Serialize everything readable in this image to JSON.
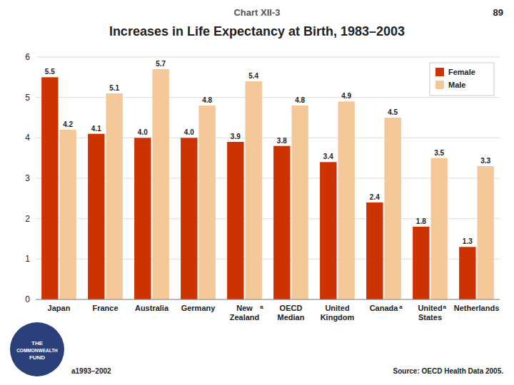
{
  "chart_data": {
    "type": "bar",
    "title": "Increases in Life Expectancy at Birth, 1983–2003",
    "subtitle": "Chart XII-3",
    "categories": [
      "Japan",
      "France",
      "Australia",
      "Germany",
      "New\nZealand",
      "OECD\nMedian",
      "United\nKingdom",
      "Canada",
      "United\nStates",
      "Netherlands"
    ],
    "series": [
      {
        "name": "Female",
        "color": "#CC3300",
        "values": [
          5.5,
          4.1,
          4.0,
          4.0,
          3.9,
          3.8,
          3.4,
          2.4,
          1.8,
          1.3
        ],
        "value_labels": [
          "5.5",
          "4.1",
          "4.0",
          "4.0",
          "3.9",
          "3.8",
          "3.4",
          "2.4",
          "1.8",
          "1.3"
        ]
      },
      {
        "name": "Male",
        "color": "#F5C89A",
        "values": [
          4.2,
          5.1,
          5.7,
          4.8,
          5.4,
          4.8,
          4.9,
          4.5,
          3.5,
          3.3
        ]
      }
    ],
    "ylim": [
      0,
      6
    ],
    "yticks": [
      0,
      1,
      2,
      3,
      4,
      5,
      6
    ],
    "grid": true,
    "legend": "upper right",
    "data_labels": true,
    "annotations": [
      "89",
      "a1993–2002",
      "Source: OECD Health Data 2005.",
      "THE",
      "COMMONWEALTH",
      "FUND",
      {
        "text": "a",
        "category": "New\nZealand"
      },
      {
        "text": "a",
        "category": "Canada"
      },
      {
        "text": "a",
        "category": "United\nStates"
      }
    ]
  }
}
